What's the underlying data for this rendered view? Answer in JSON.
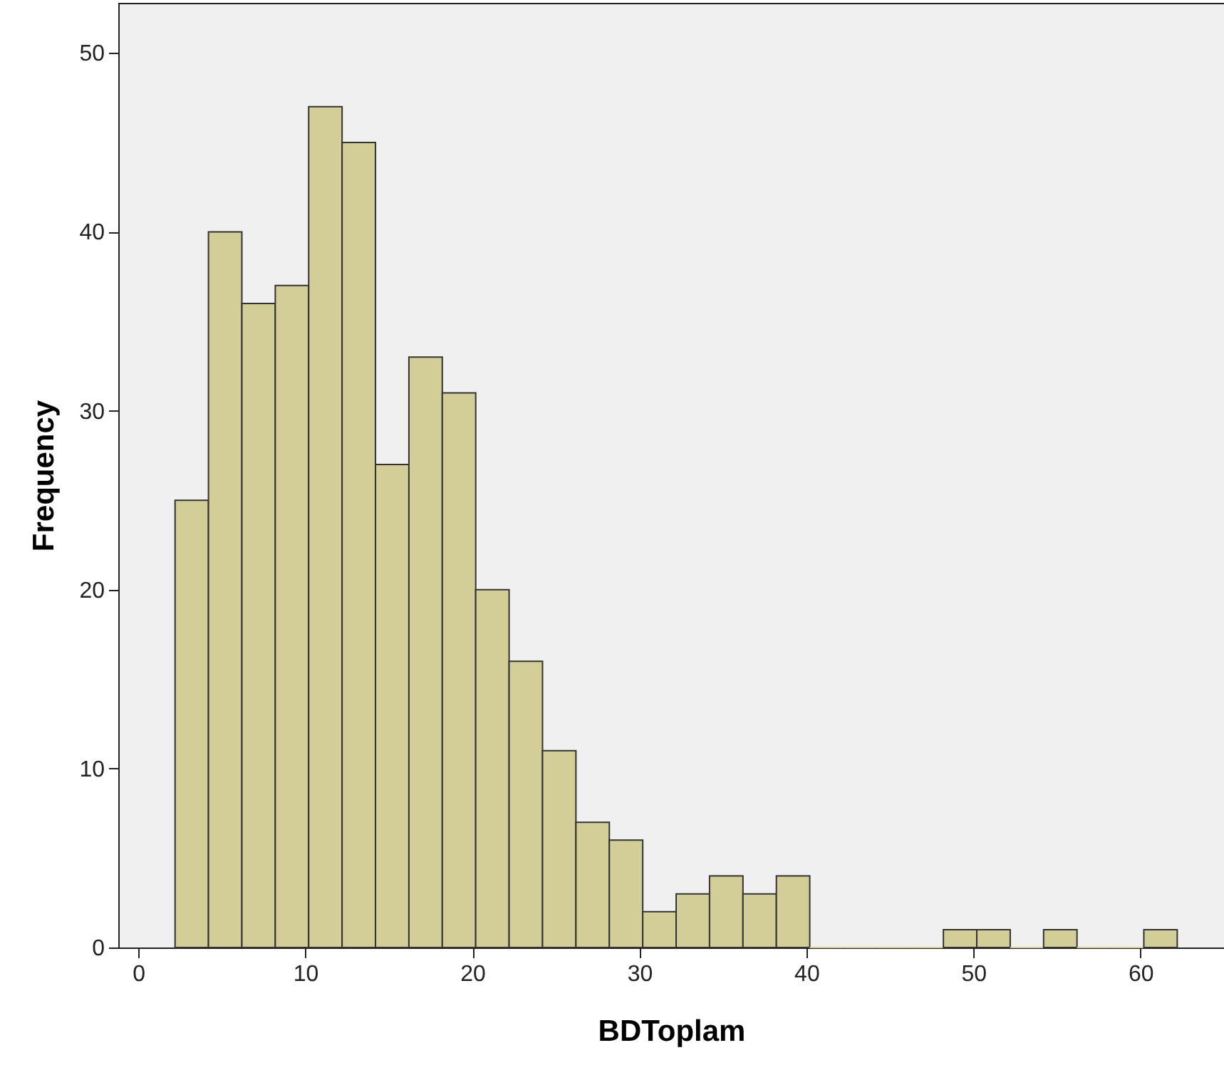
{
  "chart_data": {
    "type": "histogram",
    "xlabel": "BDToplam",
    "ylabel": "Frequency",
    "bins": [
      2.2,
      4.2,
      6.2,
      8.2,
      10.2,
      12.2,
      14.2,
      16.2,
      18.2,
      20.2,
      22.2,
      24.2,
      26.2,
      28.2,
      30.2,
      32.2,
      34.2,
      36.2,
      38.2,
      40.2,
      42.2,
      44.2,
      46.2,
      48.2,
      50.2,
      52.2,
      54.2,
      56.2,
      58.2,
      60.2,
      62.2
    ],
    "values": [
      25,
      40,
      36,
      37,
      47,
      45,
      27,
      33,
      31,
      20,
      16,
      11,
      7,
      6,
      2,
      3,
      4,
      3,
      4,
      0,
      0,
      0,
      0,
      1,
      1,
      0,
      1,
      0,
      0,
      1
    ],
    "color": "#d3ce97",
    "xlim": [
      -1.2,
      65
    ],
    "xticks": [
      0,
      10,
      20,
      30,
      40,
      50,
      60
    ],
    "ylim": [
      0,
      52.8
    ],
    "yticks": [
      0,
      10,
      20,
      30,
      40,
      50
    ],
    "grid": false
  }
}
